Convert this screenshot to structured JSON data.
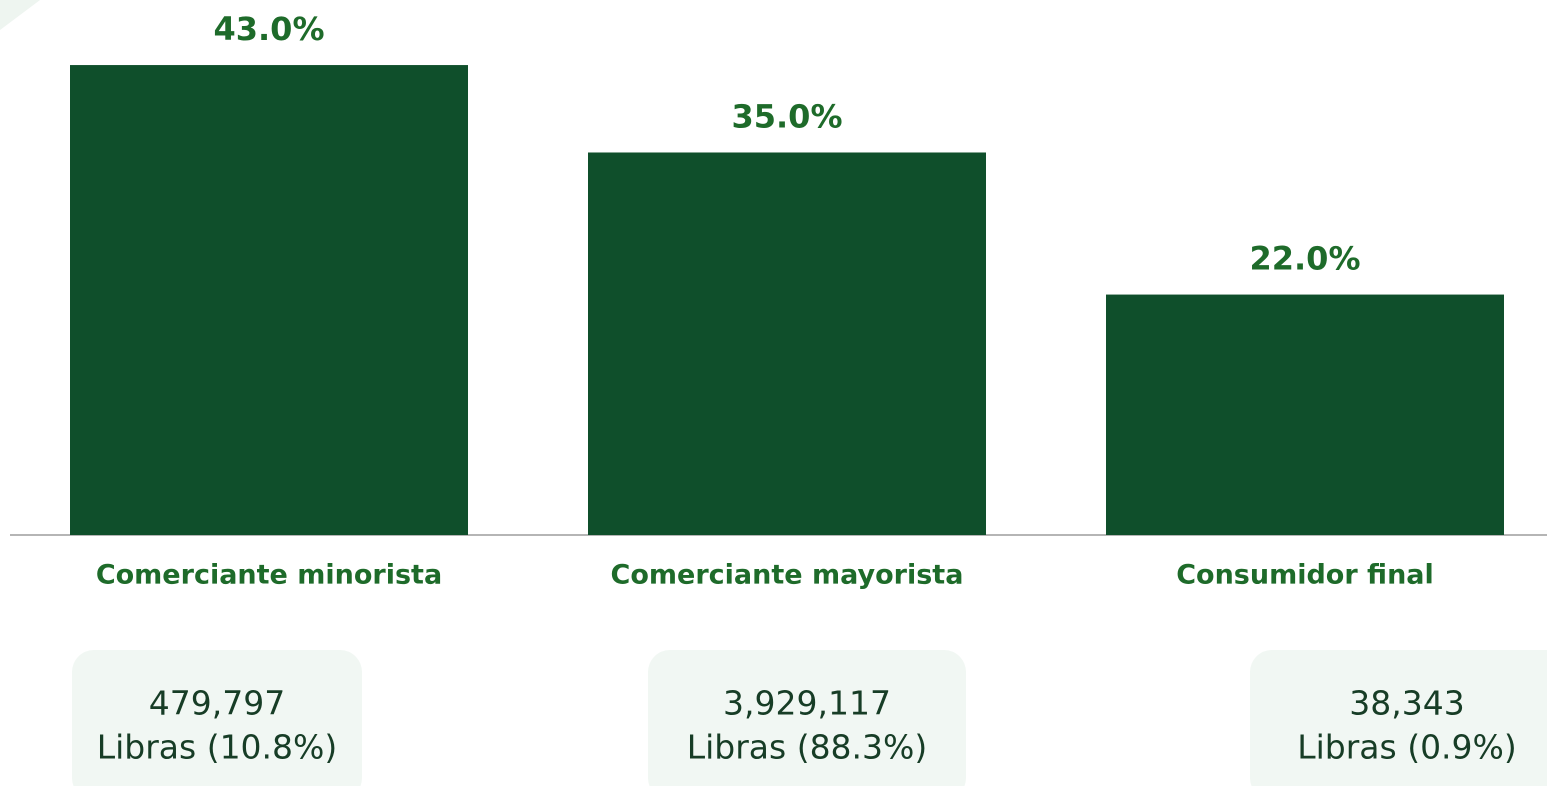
{
  "chart_data": {
    "type": "bar",
    "categories": [
      "Comerciante minorista",
      "Comerciante mayorista",
      "Consumidor final"
    ],
    "values": [
      43.0,
      35.0,
      22.0
    ],
    "value_labels": [
      "43.0%",
      "35.0%",
      "22.0%"
    ],
    "color": "#0f4f2b",
    "ylim": [
      0,
      45
    ],
    "grid": false,
    "cards": [
      {
        "lines": [
          "479,797",
          "Libras (10.8%)"
        ]
      },
      {
        "lines": [
          "3,929,117",
          "Libras (88.3%)"
        ]
      },
      {
        "lines": [
          "38,343",
          "Libras (0.9%)"
        ]
      }
    ]
  }
}
